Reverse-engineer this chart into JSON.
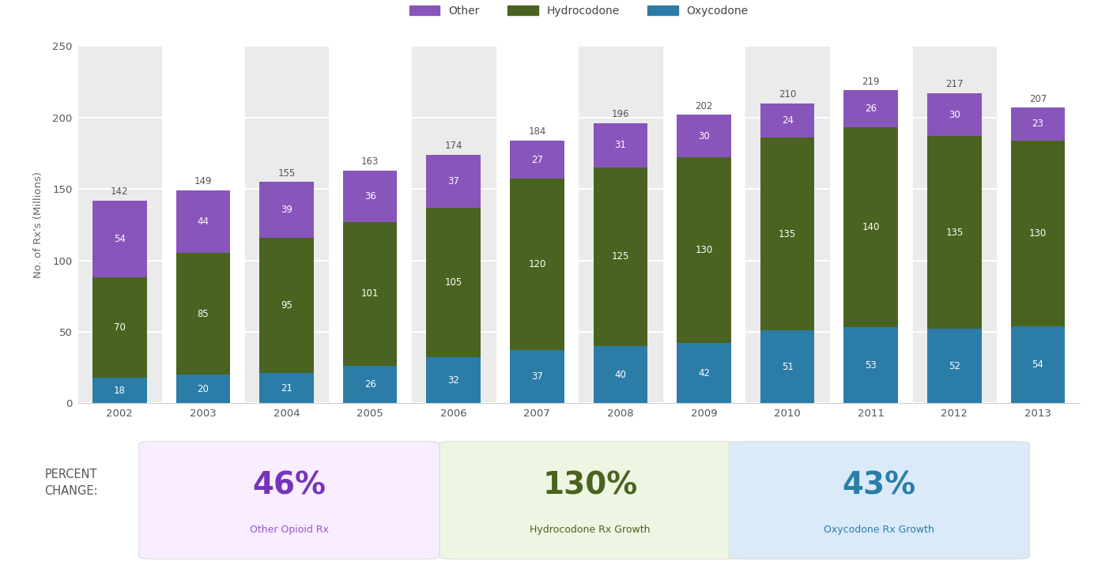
{
  "years": [
    2002,
    2003,
    2004,
    2005,
    2006,
    2007,
    2008,
    2009,
    2010,
    2011,
    2012,
    2013
  ],
  "oxycodone": [
    18,
    20,
    21,
    26,
    32,
    37,
    40,
    42,
    51,
    53,
    52,
    54
  ],
  "hydrocodone": [
    70,
    85,
    95,
    101,
    105,
    120,
    125,
    130,
    135,
    140,
    135,
    130
  ],
  "other": [
    54,
    44,
    39,
    36,
    37,
    27,
    31,
    30,
    24,
    26,
    30,
    23
  ],
  "totals": [
    142,
    149,
    155,
    163,
    174,
    184,
    196,
    202,
    210,
    219,
    217,
    207
  ],
  "color_oxycodone": "#2b7da8",
  "color_hydrocodone": "#4a6320",
  "color_other": "#8855bb",
  "color_bg_shaded": "#ebebeb",
  "ylabel": "No. of Rx's (Millions)",
  "ylim": [
    0,
    250
  ],
  "yticks": [
    0,
    50,
    100,
    150,
    200,
    250
  ],
  "legend_other": "Other",
  "legend_hydro": "Hydrocodone",
  "legend_oxy": "Oxycodone",
  "pct_other": "46%",
  "pct_other_label": "Other Opioid Rx",
  "pct_hydro": "130%",
  "pct_hydro_label": "Hydrocodone Rx Growth",
  "pct_oxy": "43%",
  "pct_oxy_label": "Oxycodone Rx Growth",
  "pct_label_left": "PERCENT\nCHANGE:",
  "box_color_other": "#f8eeff",
  "box_color_hydro": "#eef5e2",
  "box_color_oxy": "#daeaf8",
  "pct_text_other": "#7733bb",
  "pct_text_hydro": "#4a6320",
  "pct_text_oxy": "#2b7da8",
  "pct_sublabel_other": "#9955cc",
  "pct_sublabel_hydro": "#4a6320",
  "pct_sublabel_oxy": "#2b7da8",
  "shaded_indices": [
    0,
    2,
    4,
    6,
    8,
    10
  ]
}
